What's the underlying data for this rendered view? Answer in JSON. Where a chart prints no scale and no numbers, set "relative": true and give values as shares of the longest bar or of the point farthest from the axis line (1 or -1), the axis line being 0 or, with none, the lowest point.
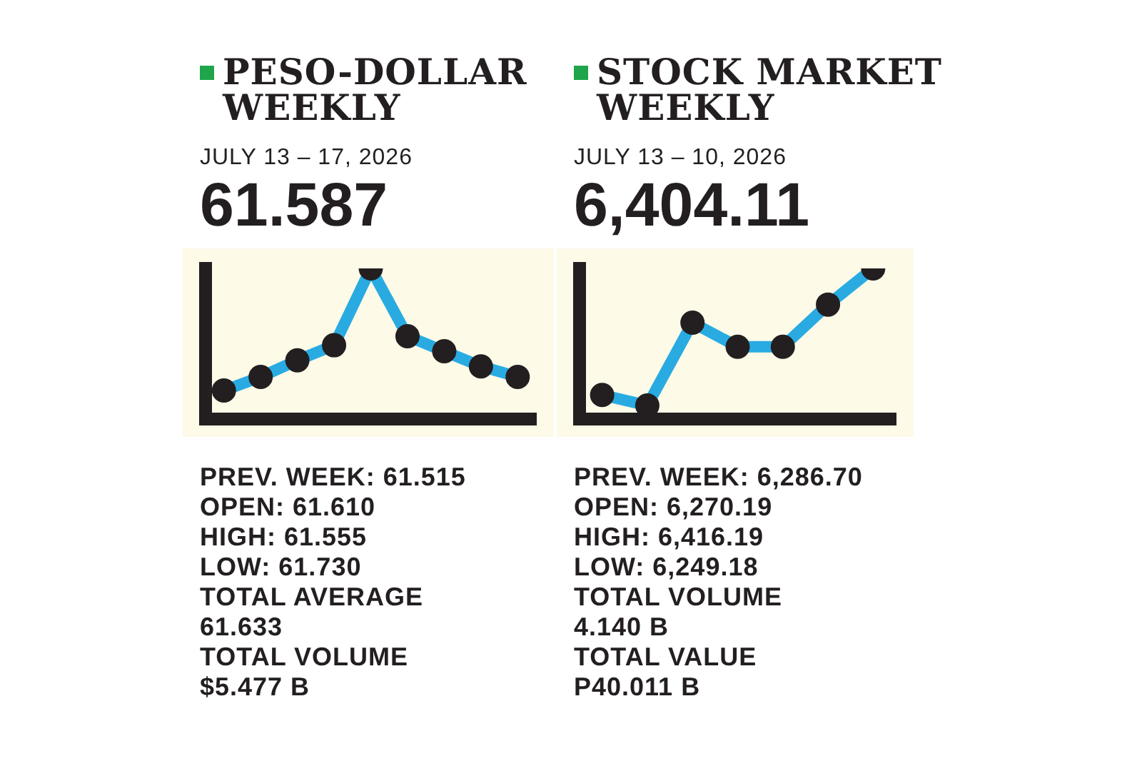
{
  "chart_data": [
    {
      "type": "line",
      "title": "PESO-DOLLAR WEEKLY",
      "subtitle": "JULY 13 – 17, 2026",
      "categories": [
        null,
        null,
        null,
        null,
        null,
        null,
        null,
        null,
        null
      ],
      "values": [
        0.19,
        0.28,
        0.39,
        0.49,
        1,
        0.55,
        0.45,
        0.35,
        0.28
      ],
      "color": "#29abe2",
      "relative": true,
      "marker": "circle",
      "annotations": [
        "61.587",
        "PREV. WEEK: 61.515",
        "OPEN: 61.610",
        "HIGH:  61.555",
        "LOW:  61.730",
        "TOTAL AVERAGE",
        "61.633",
        "TOTAL VOLUME",
        "$5.477 B"
      ]
    },
    {
      "type": "line",
      "title": "STOCK MARKET WEEKLY",
      "subtitle": "JULY 13 – 10, 2026",
      "categories": [
        null,
        null,
        null,
        null,
        null,
        null,
        null
      ],
      "values": [
        0.16,
        0.09,
        0.64,
        0.48,
        0.48,
        0.76,
        1
      ],
      "color": "#29abe2",
      "relative": true,
      "marker": "circle",
      "annotations": [
        "6,404.11",
        "PREV. WEEK: 6,286.70",
        "OPEN: 6,270.19",
        "HIGH:  6,416.19",
        "LOW:  6,249.18",
        "TOTAL VOLUME",
        "4.140 B",
        "TOTAL VALUE",
        "P40.011 B"
      ]
    }
  ]
}
